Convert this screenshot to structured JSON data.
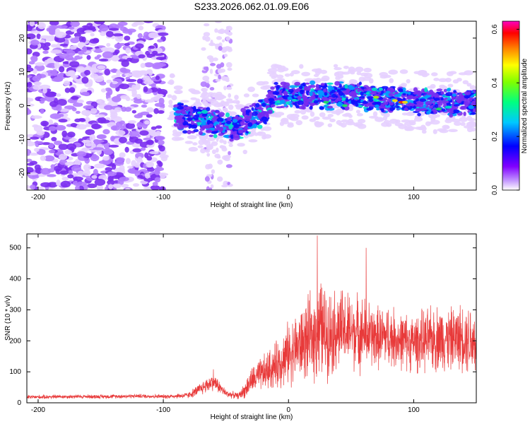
{
  "title": "S233.2026.062.01.09.E06",
  "colors": {
    "trace": "#e83a3a",
    "scatter_low": "#7a2cf0",
    "scatter_mid": "#0a7ff2",
    "scatter_high": "#2ee06a"
  },
  "chart_data": [
    {
      "type": "heatmap",
      "title": "S233.2026.062.01.09.E06",
      "xlabel": "Height of straight line (km)",
      "ylabel": "Frequency (Hz)",
      "xlim": [
        -209,
        150
      ],
      "ylim": [
        -25,
        25
      ],
      "xticks": [
        -200,
        -100,
        0,
        100
      ],
      "yticks": [
        -20,
        -10,
        0,
        10,
        20
      ],
      "colorbar": {
        "label": "Normalized spectral amplitude",
        "range": [
          0.0,
          0.63
        ],
        "ticks": [
          "0.0",
          "0.2",
          "0.4",
          "0.6"
        ],
        "colormap": [
          "#ffffff",
          "#8000ff",
          "#0000ff",
          "#00c8ff",
          "#00ff80",
          "#ffff00",
          "#ff8000",
          "#ff0000",
          "#ff00c0"
        ]
      },
      "regions": [
        {
          "name": "broadband noise",
          "x": [
            -209,
            -100
          ],
          "freq": [
            -25,
            25
          ],
          "amplitude": 0.05
        },
        {
          "name": "noise column",
          "x": [
            -65,
            -45
          ],
          "freq": [
            -25,
            25
          ],
          "amplitude": 0.03
        },
        {
          "name": "signal band",
          "x": [
            -90,
            150
          ],
          "freq_center": [
            -3,
            -5,
            -7,
            -2,
            3,
            3,
            3,
            2,
            1,
            1
          ],
          "center_x": [
            -90,
            -60,
            -45,
            -20,
            -10,
            20,
            50,
            80,
            110,
            150
          ],
          "halfwidth": 4,
          "peak_amplitude": 0.62
        }
      ]
    },
    {
      "type": "line",
      "xlabel": "Height of straight line (km)",
      "ylabel": "SNR (10 * v/v)",
      "xlim": [
        -209,
        150
      ],
      "ylim": [
        0,
        545
      ],
      "xticks": [
        -200,
        -100,
        0,
        100
      ],
      "yticks": [
        0,
        100,
        200,
        300,
        400,
        500
      ],
      "series": [
        {
          "name": "SNR",
          "x": [
            -209,
            -180,
            -150,
            -120,
            -100,
            -80,
            -70,
            -60,
            -50,
            -40,
            -35,
            -30,
            -20,
            -10,
            0,
            5,
            10,
            20,
            25,
            30,
            40,
            50,
            60,
            70,
            80,
            90,
            100,
            110,
            120,
            130,
            140,
            150
          ],
          "values": [
            18,
            20,
            20,
            22,
            20,
            24,
            45,
            70,
            30,
            22,
            40,
            70,
            95,
            120,
            160,
            175,
            190,
            215,
            240,
            225,
            235,
            230,
            225,
            210,
            215,
            200,
            195,
            200,
            210,
            205,
            215,
            200
          ],
          "spread": [
            8,
            8,
            8,
            8,
            8,
            12,
            25,
            35,
            15,
            12,
            30,
            50,
            70,
            90,
            120,
            130,
            140,
            170,
            200,
            170,
            160,
            150,
            140,
            120,
            120,
            110,
            110,
            120,
            130,
            120,
            130,
            150
          ],
          "peaks": [
            {
              "x": 23,
              "y": 540
            },
            {
              "x": 62,
              "y": 500
            },
            {
              "x": 150,
              "y": 450
            },
            {
              "x": -60,
              "y": 108
            }
          ]
        }
      ]
    }
  ]
}
